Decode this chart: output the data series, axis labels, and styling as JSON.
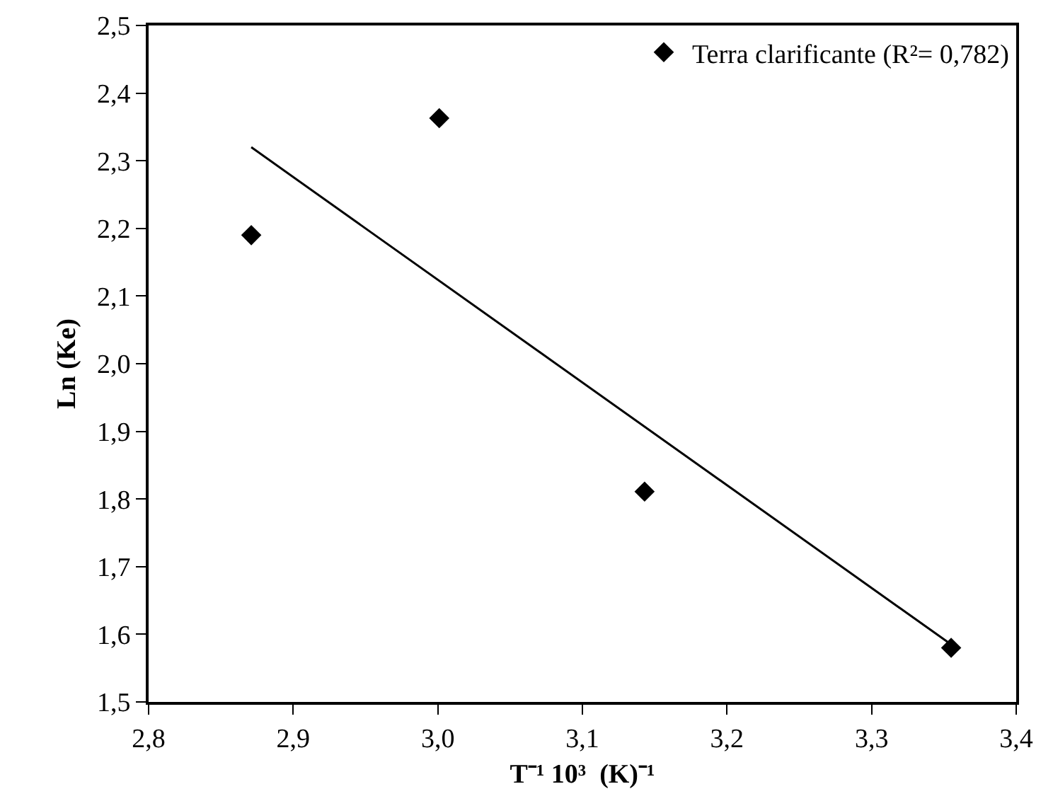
{
  "chart_data": {
    "type": "scatter",
    "xlabel": "T⁻¹ 10³  (K)⁻¹",
    "ylabel": "Ln (Ke)",
    "series": [
      {
        "name": "Terra clarificante (R²= 0,782)",
        "color": "#000000",
        "marker": "diamond",
        "x": [
          2.871,
          3.001,
          3.143,
          3.355
        ],
        "values": [
          2.19,
          2.363,
          1.811,
          1.58
        ]
      },
      {
        "color": "#000000",
        "type": "line",
        "marker": "none",
        "line_style": "solid",
        "x": [
          2.871,
          3.355
        ],
        "values": [
          2.32,
          1.585
        ]
      }
    ],
    "xlim": [
      2.8,
      3.4
    ],
    "ylim": [
      1.5,
      2.5
    ],
    "xticks": [
      {
        "value": 2.8,
        "label": "2,8"
      },
      {
        "value": 2.9,
        "label": "2,9"
      },
      {
        "value": 3.0,
        "label": "3,0"
      },
      {
        "value": 3.1,
        "label": "3,1"
      },
      {
        "value": 3.2,
        "label": "3,2"
      },
      {
        "value": 3.3,
        "label": "3,3"
      },
      {
        "value": 3.4,
        "label": "3,4"
      }
    ],
    "yticks": [
      {
        "value": 1.5,
        "label": "1,5"
      },
      {
        "value": 1.6,
        "label": "1,6"
      },
      {
        "value": 1.7,
        "label": "1,7"
      },
      {
        "value": 1.8,
        "label": "1,8"
      },
      {
        "value": 1.9,
        "label": "1,9"
      },
      {
        "value": 2.0,
        "label": "2,0"
      },
      {
        "value": 2.1,
        "label": "2,1"
      },
      {
        "value": 2.2,
        "label": "2,2"
      },
      {
        "value": 2.3,
        "label": "2,3"
      },
      {
        "value": 2.4,
        "label": "2,4"
      },
      {
        "value": 2.5,
        "label": "2,5"
      }
    ],
    "grid": false,
    "legend": "top right"
  }
}
